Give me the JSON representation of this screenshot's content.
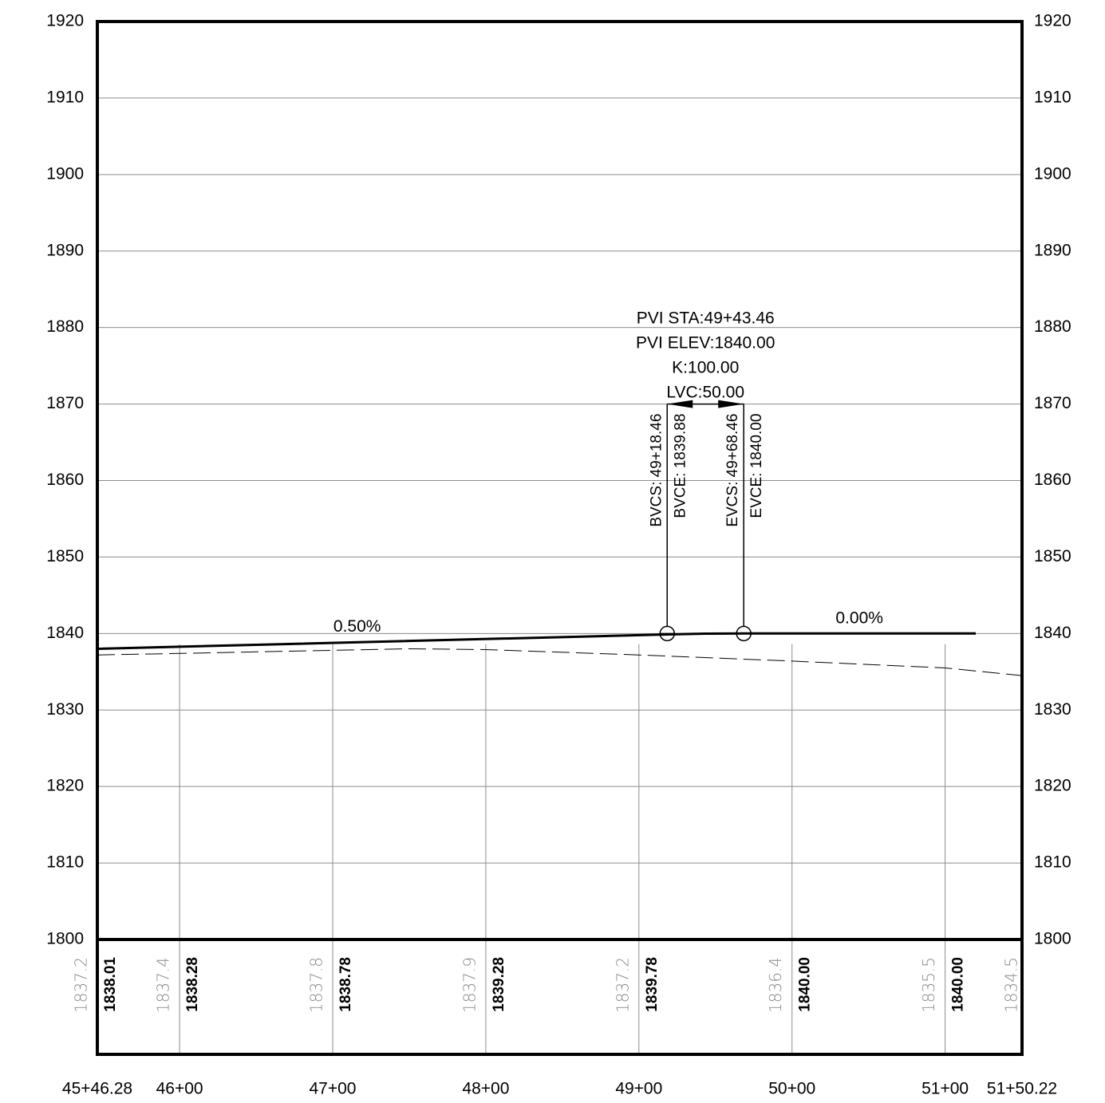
{
  "chart_data": {
    "type": "line",
    "x_domain": [
      4546.28,
      5150.22
    ],
    "ylim": [
      1800,
      1920
    ],
    "y_ticks": [
      1800,
      1810,
      1820,
      1830,
      1840,
      1850,
      1860,
      1870,
      1880,
      1890,
      1900,
      1910,
      1920
    ],
    "grid": true,
    "station_labels": [
      {
        "x": 4546.28,
        "label": "45+46.28"
      },
      {
        "x": 4600,
        "label": "46+00"
      },
      {
        "x": 4700,
        "label": "47+00"
      },
      {
        "x": 4800,
        "label": "48+00"
      },
      {
        "x": 4900,
        "label": "49+00"
      },
      {
        "x": 5000,
        "label": "50+00"
      },
      {
        "x": 5100,
        "label": "51+00"
      },
      {
        "x": 5150.22,
        "label": "51+50.22"
      }
    ],
    "series": [
      {
        "style": "solid",
        "points": [
          [
            4546.28,
            1838.0
          ],
          [
            4918.46,
            1839.88
          ],
          [
            4943.46,
            1839.98
          ],
          [
            4968.46,
            1840.0
          ],
          [
            5120,
            1840.0
          ]
        ]
      },
      {
        "style": "dashed",
        "points": [
          [
            4546.28,
            1837.2
          ],
          [
            4600,
            1837.4
          ],
          [
            4700,
            1837.8
          ],
          [
            4750,
            1838.0
          ],
          [
            4800,
            1837.9
          ],
          [
            4900,
            1837.2
          ],
          [
            5000,
            1836.4
          ],
          [
            5100,
            1835.5
          ],
          [
            5150.22,
            1834.5
          ]
        ]
      }
    ],
    "grades": [
      {
        "text": "0.50%",
        "x": 4716,
        "y": 1839.2
      },
      {
        "text": "0.00%",
        "x": 5044,
        "y": 1840.3
      }
    ],
    "pvi": {
      "lines": [
        "PVI STA:49+43.46",
        "PVI ELEV:1840.00",
        "K:100.00",
        "LVC:50.00"
      ],
      "bvcs_station": 4918.46,
      "evcs_station": 4968.46,
      "bvc_labels": [
        "BVCS: 49+18.46",
        "BVCE: 1839.88"
      ],
      "evc_labels": [
        "EVCS: 49+68.46",
        "EVCE: 1840.00"
      ],
      "marker_elevation": 1840,
      "dimension_elevation": 1870
    },
    "band": [
      {
        "x": 4546.28,
        "eg": "1837.2",
        "fg": "1838.01"
      },
      {
        "x": 4600,
        "eg": "1837.4",
        "fg": "1838.28"
      },
      {
        "x": 4700,
        "eg": "1837.8",
        "fg": "1838.78"
      },
      {
        "x": 4800,
        "eg": "1837.9",
        "fg": "1839.28"
      },
      {
        "x": 4900,
        "eg": "1837.2",
        "fg": "1839.78"
      },
      {
        "x": 5000,
        "eg": "1836.4",
        "fg": "1840.00"
      },
      {
        "x": 5100,
        "eg": "1835.5",
        "fg": "1840.00"
      },
      {
        "x": 5150.22,
        "eg": "1834.5",
        "fg": ""
      }
    ]
  }
}
